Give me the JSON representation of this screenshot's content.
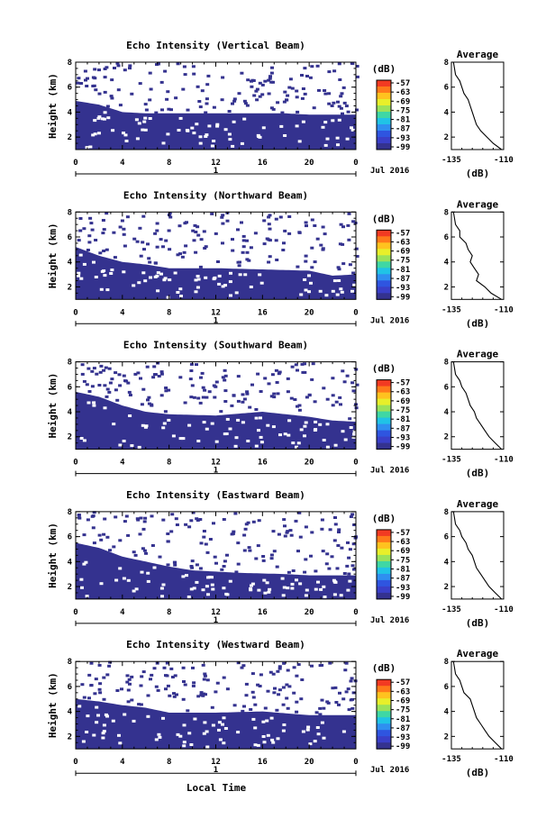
{
  "xlabel": "Local Time",
  "date_label": "Jul 2016",
  "cb_unit": "(dB)",
  "avg_title": "Average",
  "avg_xlabel": "(dB)",
  "colorbar": {
    "ticks": [
      "-57",
      "-63",
      "-69",
      "-75",
      "-81",
      "-87",
      "-93",
      "-99"
    ],
    "colors": [
      "#f23a22",
      "#ff7a1a",
      "#ffc21f",
      "#e8ef2a",
      "#9be25a",
      "#3fd7a4",
      "#20c3e6",
      "#2f8ff0",
      "#2f55e0",
      "#3a3fc8",
      "#34328f"
    ]
  },
  "chart_data": [
    {
      "type": "heatmap",
      "title": "Echo Intensity (Vertical Beam)",
      "xlabel": "Local Time",
      "ylabel": "Height (km)",
      "x_ticks": [
        "0",
        "4",
        "8",
        "12",
        "16",
        "20",
        "0"
      ],
      "x_range": [
        0,
        24
      ],
      "y_ticks": [
        "2",
        "4",
        "6",
        "8"
      ],
      "y_range": [
        1,
        8
      ],
      "day_label": "1",
      "boundary_km": [
        [
          0,
          4.9
        ],
        [
          2,
          4.6
        ],
        [
          4,
          4.0
        ],
        [
          6,
          3.9
        ],
        [
          10,
          3.9
        ],
        [
          14,
          3.9
        ],
        [
          18,
          3.9
        ],
        [
          20,
          3.8
        ],
        [
          22,
          3.8
        ],
        [
          24,
          3.8
        ]
      ],
      "average_profile": {
        "title": "Average",
        "xlabel": "(dB)",
        "x_ticks": [
          "-135",
          "-110"
        ],
        "xlim": [
          -135,
          -110
        ],
        "y_ticks": [
          "2",
          "4",
          "6",
          "8"
        ],
        "ylim": [
          1,
          8
        ],
        "x": [
          -134,
          -133,
          -131,
          -130,
          -129,
          -127,
          -126,
          -125,
          -124,
          -123,
          -121,
          -118,
          -115,
          -111
        ],
        "y": [
          8.0,
          7.0,
          6.5,
          6.0,
          5.5,
          5.0,
          4.5,
          4.0,
          3.5,
          3.0,
          2.5,
          2.0,
          1.5,
          1.0
        ]
      }
    },
    {
      "type": "heatmap",
      "title": "Echo Intensity (Northward Beam)",
      "xlabel": "Local Time",
      "ylabel": "Height (km)",
      "x_ticks": [
        "0",
        "4",
        "8",
        "12",
        "16",
        "20",
        "0"
      ],
      "x_range": [
        0,
        24
      ],
      "y_ticks": [
        "2",
        "4",
        "6",
        "8"
      ],
      "y_range": [
        1,
        8
      ],
      "day_label": "1",
      "boundary_km": [
        [
          0,
          5.2
        ],
        [
          2,
          4.5
        ],
        [
          4,
          4.0
        ],
        [
          6,
          3.8
        ],
        [
          8,
          3.5
        ],
        [
          12,
          3.5
        ],
        [
          16,
          3.4
        ],
        [
          20,
          3.3
        ],
        [
          22,
          2.9
        ],
        [
          24,
          3.0
        ]
      ],
      "average_profile": {
        "title": "Average",
        "xlabel": "(dB)",
        "x_ticks": [
          "-135",
          "-110"
        ],
        "xlim": [
          -135,
          -110
        ],
        "y_ticks": [
          "2",
          "4",
          "6",
          "8"
        ],
        "ylim": [
          1,
          8
        ],
        "x": [
          -134,
          -133,
          -131,
          -131,
          -128,
          -127,
          -125,
          -126,
          -124,
          -122,
          -123,
          -119,
          -116,
          -111
        ],
        "y": [
          8.0,
          7.0,
          6.5,
          6.0,
          5.5,
          5.0,
          4.5,
          4.0,
          3.5,
          3.0,
          2.5,
          2.0,
          1.5,
          1.0
        ]
      }
    },
    {
      "type": "heatmap",
      "title": "Echo Intensity (Southward Beam)",
      "xlabel": "Local Time",
      "ylabel": "Height (km)",
      "x_ticks": [
        "0",
        "4",
        "8",
        "12",
        "16",
        "20",
        "0"
      ],
      "x_range": [
        0,
        24
      ],
      "y_ticks": [
        "2",
        "4",
        "6",
        "8"
      ],
      "y_range": [
        1,
        8
      ],
      "day_label": "1",
      "boundary_km": [
        [
          0,
          5.6
        ],
        [
          2,
          5.2
        ],
        [
          4,
          4.5
        ],
        [
          6,
          4.0
        ],
        [
          8,
          3.8
        ],
        [
          12,
          3.7
        ],
        [
          16,
          4.0
        ],
        [
          20,
          3.6
        ],
        [
          22,
          3.3
        ],
        [
          24,
          3.2
        ]
      ],
      "average_profile": {
        "title": "Average",
        "xlabel": "(dB)",
        "x_ticks": [
          "-135",
          "-110"
        ],
        "xlim": [
          -135,
          -110
        ],
        "y_ticks": [
          "2",
          "4",
          "6",
          "8"
        ],
        "ylim": [
          1,
          8
        ],
        "x": [
          -134,
          -133,
          -131,
          -130,
          -128,
          -127,
          -126,
          -124,
          -123,
          -121,
          -119,
          -117,
          -114,
          -111
        ],
        "y": [
          8.0,
          7.0,
          6.5,
          6.0,
          5.5,
          5.0,
          4.5,
          4.0,
          3.5,
          3.0,
          2.5,
          2.0,
          1.5,
          1.0
        ]
      }
    },
    {
      "type": "heatmap",
      "title": "Echo Intensity (Eastward Beam)",
      "xlabel": "Local Time",
      "ylabel": "Height (km)",
      "x_ticks": [
        "0",
        "4",
        "8",
        "12",
        "16",
        "20",
        "0"
      ],
      "x_range": [
        0,
        24
      ],
      "y_ticks": [
        "2",
        "4",
        "6",
        "8"
      ],
      "y_range": [
        1,
        8
      ],
      "day_label": "1",
      "boundary_km": [
        [
          0,
          5.5
        ],
        [
          2,
          5.1
        ],
        [
          4,
          4.4
        ],
        [
          6,
          4.0
        ],
        [
          8,
          3.6
        ],
        [
          10,
          3.3
        ],
        [
          14,
          3.1
        ],
        [
          18,
          3.0
        ],
        [
          20,
          2.9
        ],
        [
          24,
          2.9
        ]
      ],
      "average_profile": {
        "title": "Average",
        "xlabel": "(dB)",
        "x_ticks": [
          "-135",
          "-110"
        ],
        "xlim": [
          -135,
          -110
        ],
        "y_ticks": [
          "2",
          "4",
          "6",
          "8"
        ],
        "ylim": [
          1,
          8
        ],
        "x": [
          -134,
          -133,
          -131,
          -130,
          -128,
          -127,
          -125,
          -124,
          -123,
          -121,
          -119,
          -117,
          -114,
          -111
        ],
        "y": [
          8.0,
          7.0,
          6.5,
          6.0,
          5.5,
          5.0,
          4.5,
          4.0,
          3.5,
          3.0,
          2.5,
          2.0,
          1.5,
          1.0
        ]
      }
    },
    {
      "type": "heatmap",
      "title": "Echo Intensity (Westward Beam)",
      "xlabel": "Local Time",
      "ylabel": "Height (km)",
      "x_ticks": [
        "0",
        "4",
        "8",
        "12",
        "16",
        "20",
        "0"
      ],
      "x_range": [
        0,
        24
      ],
      "y_ticks": [
        "2",
        "4",
        "6",
        "8"
      ],
      "y_range": [
        1,
        8
      ],
      "day_label": "1",
      "boundary_km": [
        [
          0,
          5.0
        ],
        [
          2,
          4.8
        ],
        [
          4,
          4.5
        ],
        [
          6,
          4.3
        ],
        [
          8,
          3.9
        ],
        [
          12,
          3.9
        ],
        [
          16,
          4.0
        ],
        [
          20,
          3.7
        ],
        [
          24,
          3.7
        ]
      ],
      "average_profile": {
        "title": "Average",
        "xlabel": "(dB)",
        "x_ticks": [
          "-135",
          "-110"
        ],
        "xlim": [
          -135,
          -110
        ],
        "y_ticks": [
          "2",
          "4",
          "6",
          "8"
        ],
        "ylim": [
          1,
          8
        ],
        "x": [
          -134,
          -133,
          -131,
          -130,
          -129,
          -126,
          -125,
          -124,
          -123,
          -121,
          -119,
          -117,
          -114,
          -111
        ],
        "y": [
          8.0,
          7.0,
          6.5,
          6.0,
          5.5,
          5.0,
          4.5,
          4.0,
          3.5,
          3.0,
          2.5,
          2.0,
          1.5,
          1.0
        ]
      }
    }
  ]
}
